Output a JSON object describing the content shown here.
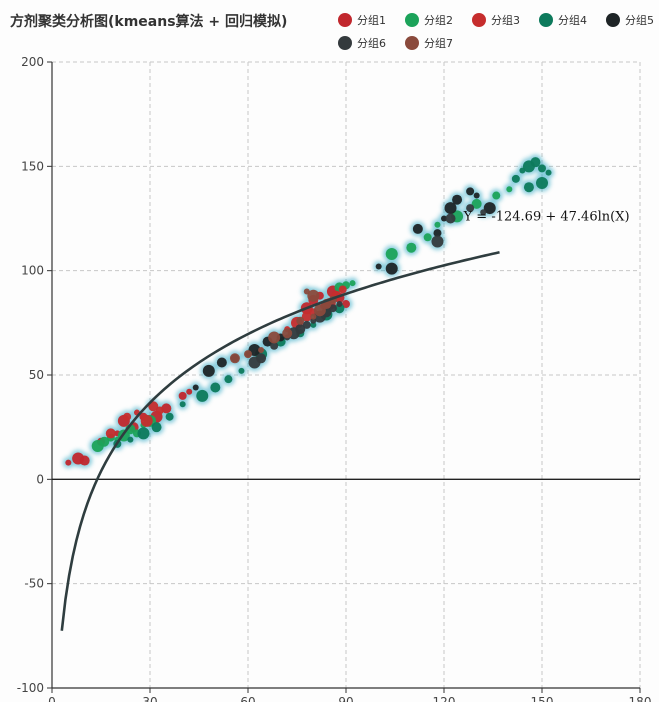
{
  "chart_data": {
    "type": "scatter",
    "title": "方剂聚类分析图(kmeans算法 + 回归模拟)",
    "xlabel": "",
    "ylabel": "",
    "xlim": [
      0,
      180
    ],
    "ylim": [
      -100,
      200
    ],
    "x_ticks": [
      "0",
      "30",
      "60",
      "90",
      "120",
      "150",
      "180"
    ],
    "y_ticks": [
      "-100",
      "-50",
      "0",
      "50",
      "100",
      "150",
      "200"
    ],
    "grid": true,
    "legend_position": "top-right",
    "regression": {
      "label": "Y = -124.69 + 47.46ln(X)",
      "intercept": -124.69,
      "slope": 47.46,
      "x_range": [
        3,
        137
      ],
      "color": "#2f3d3f"
    },
    "series": [
      {
        "name": "分组1",
        "color": "#c1272d",
        "points": [
          [
            5,
            8
          ],
          [
            8,
            10
          ],
          [
            10,
            9
          ],
          [
            15,
            18
          ],
          [
            20,
            22
          ],
          [
            22,
            28
          ],
          [
            25,
            25
          ],
          [
            28,
            30
          ],
          [
            30,
            27
          ],
          [
            32,
            30
          ],
          [
            35,
            34
          ],
          [
            40,
            40
          ],
          [
            42,
            42
          ],
          [
            78,
            82
          ],
          [
            80,
            86
          ],
          [
            82,
            88
          ],
          [
            84,
            85
          ],
          [
            86,
            90
          ],
          [
            88,
            87
          ],
          [
            90,
            84
          ]
        ]
      },
      {
        "name": "分组2",
        "color": "#1ca35a",
        "points": [
          [
            14,
            16
          ],
          [
            16,
            18
          ],
          [
            18,
            20
          ],
          [
            20,
            19
          ],
          [
            22,
            21
          ],
          [
            24,
            24
          ],
          [
            26,
            22
          ],
          [
            28,
            26
          ],
          [
            30,
            28
          ],
          [
            88,
            92
          ],
          [
            90,
            93
          ],
          [
            92,
            94
          ],
          [
            104,
            108
          ],
          [
            110,
            111
          ],
          [
            115,
            116
          ],
          [
            118,
            122
          ],
          [
            124,
            126
          ],
          [
            130,
            132
          ],
          [
            136,
            136
          ],
          [
            140,
            139
          ]
        ]
      },
      {
        "name": "分组3",
        "color": "#c62d2d",
        "points": [
          [
            18,
            22
          ],
          [
            23,
            30
          ],
          [
            26,
            32
          ],
          [
            29,
            28
          ],
          [
            31,
            35
          ],
          [
            33,
            33
          ],
          [
            72,
            72
          ],
          [
            75,
            75
          ],
          [
            78,
            78
          ],
          [
            80,
            80
          ],
          [
            83,
            83
          ],
          [
            85,
            84
          ],
          [
            87,
            88
          ],
          [
            89,
            91
          ]
        ]
      },
      {
        "name": "分组4",
        "color": "#0d7a5c",
        "points": [
          [
            20,
            17
          ],
          [
            24,
            19
          ],
          [
            28,
            22
          ],
          [
            32,
            25
          ],
          [
            36,
            30
          ],
          [
            40,
            36
          ],
          [
            46,
            40
          ],
          [
            50,
            44
          ],
          [
            54,
            48
          ],
          [
            58,
            52
          ],
          [
            64,
            60
          ],
          [
            70,
            66
          ],
          [
            76,
            70
          ],
          [
            80,
            74
          ],
          [
            84,
            79
          ],
          [
            88,
            82
          ],
          [
            142,
            144
          ],
          [
            144,
            148
          ],
          [
            146,
            150
          ],
          [
            148,
            152
          ],
          [
            150,
            149
          ],
          [
            152,
            147
          ],
          [
            150,
            142
          ],
          [
            146,
            140
          ]
        ]
      },
      {
        "name": "分组5",
        "color": "#1e2426",
        "points": [
          [
            44,
            44
          ],
          [
            48,
            52
          ],
          [
            52,
            56
          ],
          [
            56,
            58
          ],
          [
            60,
            60
          ],
          [
            62,
            62
          ],
          [
            66,
            66
          ],
          [
            70,
            68
          ],
          [
            100,
            102
          ],
          [
            104,
            101
          ],
          [
            112,
            120
          ],
          [
            118,
            118
          ],
          [
            120,
            125
          ],
          [
            122,
            130
          ],
          [
            124,
            134
          ],
          [
            128,
            138
          ],
          [
            130,
            136
          ],
          [
            134,
            130
          ]
        ]
      },
      {
        "name": "分组6",
        "color": "#343a3d",
        "points": [
          [
            62,
            56
          ],
          [
            64,
            58
          ],
          [
            68,
            64
          ],
          [
            72,
            68
          ],
          [
            74,
            70
          ],
          [
            76,
            72
          ],
          [
            78,
            74
          ],
          [
            80,
            76
          ],
          [
            82,
            78
          ],
          [
            84,
            80
          ],
          [
            86,
            82
          ],
          [
            88,
            84
          ],
          [
            118,
            114
          ],
          [
            122,
            125
          ],
          [
            128,
            130
          ],
          [
            132,
            128
          ]
        ]
      },
      {
        "name": "分组7",
        "color": "#8a4a3c",
        "points": [
          [
            56,
            58
          ],
          [
            60,
            60
          ],
          [
            64,
            62
          ],
          [
            68,
            68
          ],
          [
            72,
            70
          ],
          [
            76,
            76
          ],
          [
            80,
            78
          ],
          [
            82,
            81
          ],
          [
            84,
            84
          ],
          [
            86,
            86
          ],
          [
            78,
            90
          ],
          [
            80,
            88
          ]
        ]
      }
    ]
  }
}
